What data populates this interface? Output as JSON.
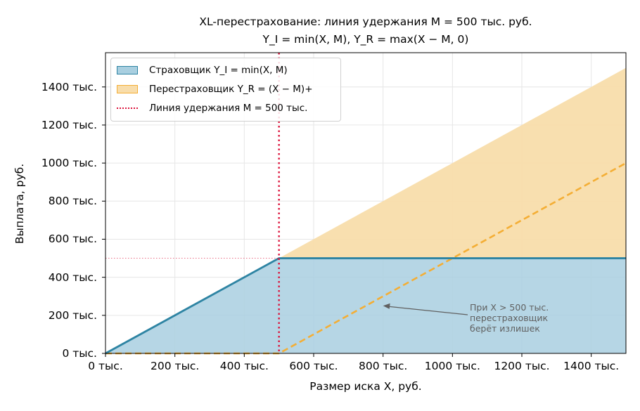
{
  "chart_data": {
    "type": "area",
    "title_line1": "XL-перестрахование: линия удержания M = 500 тыс. руб.",
    "title_line2": "Y_I = min(X, M),  Y_R = max(X − M, 0)",
    "xlabel": "Размер иска X, руб.",
    "ylabel": "Выплата, руб.",
    "xlim": [
      0,
      1500000
    ],
    "ylim": [
      0,
      1580000
    ],
    "x_ticks": [
      0,
      200000,
      400000,
      600000,
      800000,
      1000000,
      1200000,
      1400000
    ],
    "x_tick_labels": [
      "0 тыс.",
      "200 тыс.",
      "400 тыс.",
      "600 тыс.",
      "800 тыс.",
      "1000 тыс.",
      "1200 тыс.",
      "1400 тыс."
    ],
    "y_ticks": [
      0,
      200000,
      400000,
      600000,
      800000,
      1000000,
      1200000,
      1400000
    ],
    "y_tick_labels": [
      "0 тыс.",
      "200 тыс.",
      "400 тыс.",
      "600 тыс.",
      "800 тыс.",
      "1000 тыс.",
      "1200 тыс.",
      "1400 тыс."
    ],
    "grid": true,
    "legend_position": "top-left",
    "retention": 500000,
    "series": [
      {
        "name": "Страховщик Y_I = min(X, M)",
        "kind": "filled-area+line",
        "color_fill": "#a9cfe0",
        "color_line": "#2e84a3",
        "x": [
          0,
          500000,
          1500000
        ],
        "y": [
          0,
          500000,
          500000
        ]
      },
      {
        "name": "Перестраховщик Y_R = (X − M)+",
        "kind": "stacked-area+dashed-line",
        "color_fill": "#f8ddab",
        "color_line": "#f4ae35",
        "x": [
          0,
          500000,
          1500000
        ],
        "y": [
          0,
          0,
          1000000
        ]
      },
      {
        "name": "Линия удержания M = 500 тыс.",
        "kind": "vertical-dotted-line",
        "color_line": "#dc143c",
        "x": [
          500000,
          500000
        ]
      }
    ],
    "annotation": {
      "text": "При X > 500 тыс.\nперестраховщик\nберёт излишек",
      "color": "#606060",
      "arrow_to": [
        800000,
        250000
      ]
    }
  }
}
